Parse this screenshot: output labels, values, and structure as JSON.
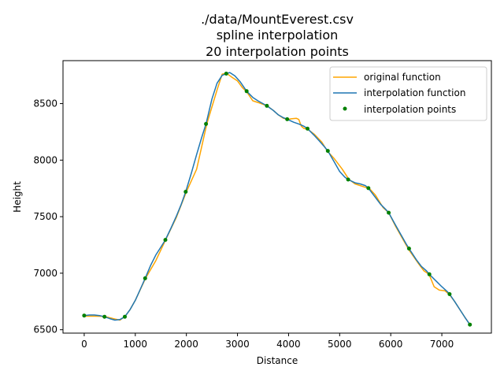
{
  "chart_data": {
    "type": "line",
    "title_lines": [
      "./data/MountEverest.csv",
      "spline interpolation",
      "20 interpolation points"
    ],
    "xlabel": "Distance",
    "ylabel": "Height",
    "xlim": [
      -415,
      7970
    ],
    "ylim": [
      6470,
      8880
    ],
    "x_ticks": [
      0,
      1000,
      2000,
      3000,
      4000,
      5000,
      6000,
      7000
    ],
    "y_ticks": [
      6500,
      7000,
      7500,
      8000,
      8500
    ],
    "x_tick_labels": [
      "0",
      "1000",
      "2000",
      "3000",
      "4000",
      "5000",
      "6000",
      "7000"
    ],
    "y_tick_labels": [
      "6500",
      "7000",
      "7500",
      "8000",
      "8500"
    ],
    "legend": {
      "placement": "upper right",
      "entries": [
        "original function",
        "interpolation function",
        "interpolation points"
      ]
    },
    "colors": {
      "original": "#ffa500",
      "interpolation": "#1f77b4",
      "points": "#008000"
    },
    "series": [
      {
        "name": "original function",
        "style": "line",
        "x": [
          0,
          200,
          400,
          600,
          700,
          800,
          900,
          1000,
          1200,
          1400,
          1600,
          1800,
          2000,
          2200,
          2400,
          2600,
          2700,
          2780,
          2900,
          3000,
          3100,
          3180,
          3300,
          3400,
          3580,
          3700,
          3800,
          3900,
          3980,
          4050,
          4150,
          4200,
          4250,
          4300,
          4370,
          4500,
          4650,
          4760,
          4900,
          5050,
          5180,
          5300,
          5400,
          5500,
          5580,
          5700,
          5850,
          5960,
          6100,
          6200,
          6350,
          6450,
          6550,
          6650,
          6750,
          6850,
          6950,
          7060,
          7150,
          7250,
          7350,
          7450,
          7550
        ],
        "y": [
          6620,
          6620,
          6618,
          6595,
          6585,
          6618,
          6680,
          6760,
          6955,
          7110,
          7300,
          7490,
          7720,
          7920,
          8320,
          8620,
          8760,
          8770,
          8730,
          8700,
          8640,
          8605,
          8525,
          8510,
          8480,
          8440,
          8400,
          8370,
          8360,
          8365,
          8370,
          8360,
          8300,
          8280,
          8275,
          8230,
          8160,
          8080,
          8010,
          7920,
          7830,
          7790,
          7775,
          7760,
          7750,
          7690,
          7580,
          7535,
          7410,
          7330,
          7210,
          7145,
          7080,
          7020,
          6990,
          6880,
          6850,
          6845,
          6810,
          6750,
          6680,
          6610,
          6545
        ]
      },
      {
        "name": "interpolation function",
        "style": "line",
        "x": [
          0,
          100,
          200,
          300,
          397,
          500,
          600,
          700,
          795,
          900,
          1000,
          1100,
          1192,
          1300,
          1400,
          1500,
          1589,
          1700,
          1800,
          1900,
          1987,
          2100,
          2200,
          2300,
          2384,
          2500,
          2600,
          2700,
          2781,
          2850,
          2950,
          3050,
          3179,
          3300,
          3400,
          3500,
          3576,
          3700,
          3800,
          3900,
          3974,
          4100,
          4200,
          4300,
          4371,
          4500,
          4600,
          4700,
          4768,
          4900,
          5000,
          5100,
          5166,
          5300,
          5400,
          5500,
          5563,
          5700,
          5800,
          5900,
          5960,
          6100,
          6200,
          6300,
          6358,
          6500,
          6600,
          6700,
          6755,
          6900,
          7000,
          7100,
          7152,
          7250,
          7350,
          7450,
          7549
        ],
        "y": [
          6625,
          6630,
          6630,
          6625,
          6615,
          6598,
          6585,
          6590,
          6615,
          6680,
          6760,
          6860,
          6955,
          7070,
          7160,
          7230,
          7295,
          7400,
          7500,
          7610,
          7720,
          7890,
          8050,
          8200,
          8320,
          8540,
          8680,
          8750,
          8765,
          8775,
          8745,
          8695,
          8610,
          8555,
          8525,
          8500,
          8480,
          8440,
          8400,
          8375,
          8362,
          8335,
          8320,
          8300,
          8278,
          8220,
          8170,
          8120,
          8082,
          7980,
          7900,
          7850,
          7828,
          7800,
          7790,
          7775,
          7752,
          7670,
          7610,
          7565,
          7535,
          7420,
          7340,
          7260,
          7218,
          7120,
          7060,
          7020,
          6990,
          6925,
          6880,
          6840,
          6815,
          6750,
          6680,
          6610,
          6545
        ]
      },
      {
        "name": "interpolation points",
        "style": "points",
        "x": [
          0,
          397,
          795,
          1192,
          1589,
          1987,
          2384,
          2781,
          3179,
          3576,
          3974,
          4371,
          4768,
          5166,
          5563,
          5960,
          6358,
          6755,
          7152,
          7549
        ],
        "y": [
          6625,
          6615,
          6615,
          6955,
          7295,
          7720,
          8320,
          8765,
          8610,
          8480,
          8362,
          8278,
          8082,
          7828,
          7752,
          7535,
          7218,
          6990,
          6815,
          6545
        ]
      }
    ]
  }
}
